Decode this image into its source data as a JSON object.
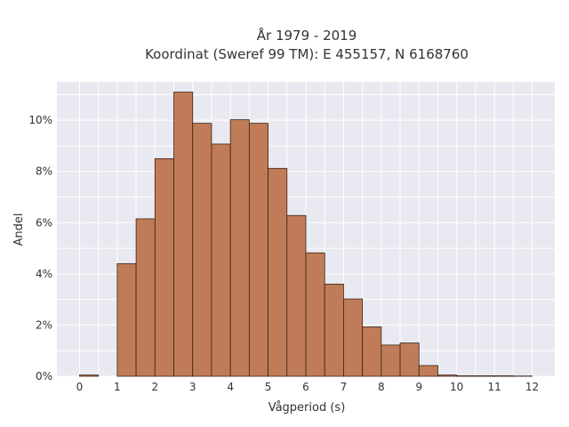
{
  "chart_data": {
    "type": "bar",
    "title": "År 1979 - 2019",
    "subtitle": "Koordinat (Sweref 99 TM): E 455157, N 6168760",
    "xlabel": "Vågperiod (s)",
    "ylabel": "Andel",
    "bin_width": 0.5,
    "bin_starts": [
      0,
      0.5,
      1,
      1.5,
      2,
      2.5,
      3,
      3.5,
      4,
      4.5,
      5,
      5.5,
      6,
      6.5,
      7,
      7.5,
      8,
      8.5,
      9,
      9.5,
      10,
      10.5,
      11,
      11.5
    ],
    "values": [
      0.05,
      0,
      4.4,
      6.15,
      8.5,
      11.1,
      9.88,
      9.07,
      10.02,
      9.88,
      8.12,
      6.28,
      4.82,
      3.6,
      3.02,
      1.93,
      1.22,
      1.3,
      0.42,
      0.05,
      0.02,
      0.02,
      0.02,
      0.01
    ],
    "xlim": [
      -0.6,
      12.6
    ],
    "ylim": [
      0,
      11.5
    ],
    "x_ticks": [
      "0",
      "1",
      "2",
      "3",
      "4",
      "5",
      "6",
      "7",
      "8",
      "9",
      "10",
      "11",
      "12"
    ],
    "y_ticks": [
      "0%",
      "2%",
      "4%",
      "6%",
      "8%",
      "10%"
    ],
    "grid": true,
    "colors": {
      "bar_fill": "#c07c58",
      "bar_edge": "#3a2316",
      "plot_bg": "#e9e9f1",
      "grid": "#ffffff"
    }
  }
}
